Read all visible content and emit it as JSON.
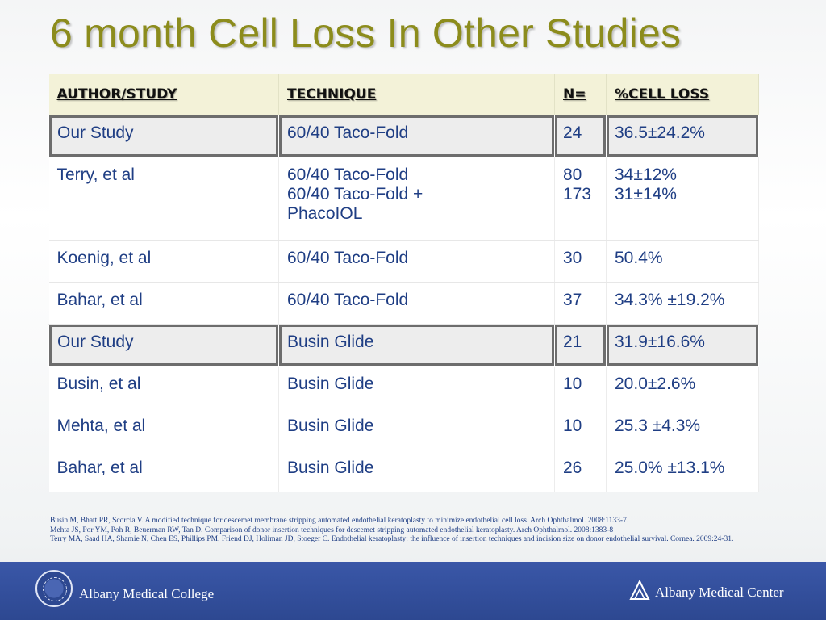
{
  "slide": {
    "title": "6 month Cell Loss In Other Studies"
  },
  "table": {
    "headers": [
      "AUTHOR/STUDY",
      "TECHNIQUE",
      "N=",
      "%CELL LOSS"
    ],
    "rows": [
      {
        "author": "Our Study",
        "technique": [
          "60/40 Taco-Fold"
        ],
        "n": [
          "24"
        ],
        "loss": [
          "36.5±24.2%"
        ],
        "highlight": true
      },
      {
        "author": "Terry, et al",
        "technique": [
          "60/40 Taco-Fold",
          "60/40 Taco-Fold +",
          "PhacoIOL"
        ],
        "n": [
          "80",
          "173"
        ],
        "loss": [
          "34±12%",
          "31±14%"
        ],
        "highlight": false
      },
      {
        "author": "Koenig, et al",
        "technique": [
          "60/40 Taco-Fold"
        ],
        "n": [
          "30"
        ],
        "loss": [
          "50.4%"
        ],
        "highlight": false
      },
      {
        "author": "Bahar, et al",
        "technique": [
          "60/40 Taco-Fold"
        ],
        "n": [
          "37"
        ],
        "loss": [
          "34.3% ±19.2%"
        ],
        "highlight": false
      },
      {
        "author": "Our Study",
        "technique": [
          "Busin Glide"
        ],
        "n": [
          "21"
        ],
        "loss": [
          "31.9±16.6%"
        ],
        "highlight": true
      },
      {
        "author": "Busin, et al",
        "technique": [
          "Busin Glide"
        ],
        "n": [
          "10"
        ],
        "loss": [
          "20.0±2.6%"
        ],
        "highlight": false
      },
      {
        "author": "Mehta, et al",
        "technique": [
          "Busin Glide"
        ],
        "n": [
          "10"
        ],
        "loss": [
          "25.3 ±4.3%"
        ],
        "highlight": false
      },
      {
        "author": "Bahar, et al",
        "technique": [
          "Busin Glide"
        ],
        "n": [
          "26"
        ],
        "loss": [
          "25.0% ±13.1%"
        ],
        "highlight": false
      }
    ]
  },
  "references": [
    "Busin M, Bhatt PR, Scorcia V. A modified technique for descemet membrane stripping automated endothelial keratoplasty to minimize endothelial cell loss. Arch Ophthalmol. 2008:1133-7.",
    "Mehta JS, Por YM, Poh R, Beuerman RW, Tan D. Comparison of donor insertion techniques for descemet stripping automated endothelial keratoplasty. Arch Ophthalmol. 2008:1383-8",
    "Terry MA, Saad HA, Shamie N, Chen ES, Phillips PM, Friend DJ, Holiman JD, Stoeger C. Endothelial keratoplasty: the influence of insertion techniques and incision size on donor endothelial survival. Cornea. 2009:24-31."
  ],
  "footer": {
    "left_label": "Albany Medical College",
    "right_label": "Albany Medical Center",
    "colors": {
      "band": "#2d4891",
      "title": "#8c8c1c",
      "text": "#1f3e84",
      "header_bg": "#f3f2d8"
    },
    "icons": [
      "college-seal-icon",
      "medical-center-logo-icon"
    ]
  }
}
